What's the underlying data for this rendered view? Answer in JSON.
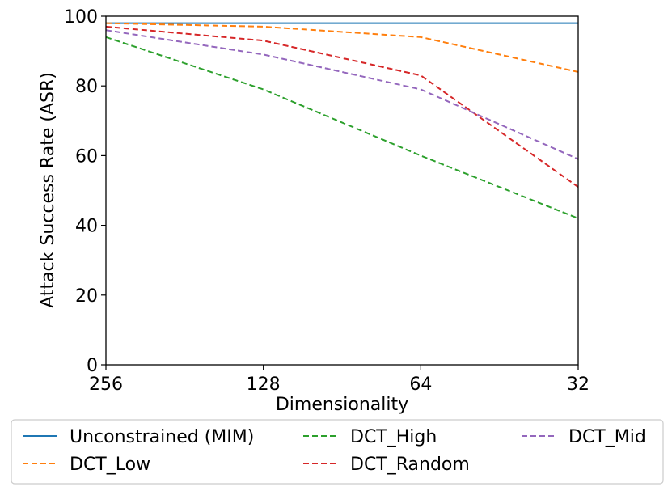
{
  "chart_data": {
    "type": "line",
    "title": "",
    "xlabel": "Dimensionality",
    "ylabel": "Attack Success Rate (ASR)",
    "x": [
      "256",
      "128",
      "64",
      "32"
    ],
    "ylim": [
      0,
      100
    ],
    "yticks": [
      "0",
      "20",
      "40",
      "60",
      "80",
      "100"
    ],
    "legend_position": "bottom",
    "grid": false,
    "series": [
      {
        "name": "Unconstrained (MIM)",
        "color": "#1f77b4",
        "style": "solid",
        "values": [
          98,
          98,
          98,
          98
        ]
      },
      {
        "name": "DCT_Low",
        "color": "#ff7f0e",
        "style": "dashed",
        "values": [
          98,
          97,
          94,
          84
        ]
      },
      {
        "name": "DCT_High",
        "color": "#2ca02c",
        "style": "dashed",
        "values": [
          94,
          79,
          60,
          42
        ]
      },
      {
        "name": "DCT_Random",
        "color": "#d62728",
        "style": "dashed",
        "values": [
          97,
          93,
          83,
          51
        ]
      },
      {
        "name": "DCT_Mid",
        "color": "#9467bd",
        "style": "dashed",
        "values": [
          96,
          89,
          79,
          59
        ]
      }
    ]
  }
}
